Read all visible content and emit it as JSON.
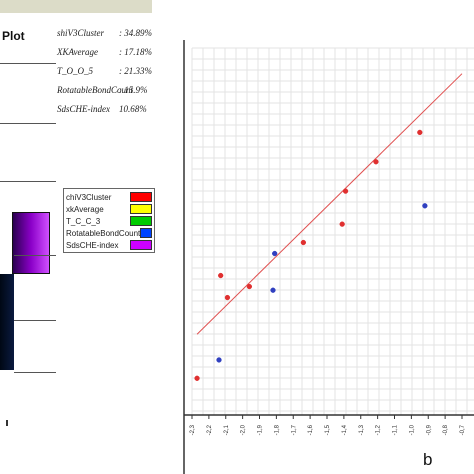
{
  "left_panel": {
    "title": "Plot",
    "stats": [
      {
        "label": "shiV3Cluster",
        "value": ": 34.89%"
      },
      {
        "label": "XKAverage",
        "value": ": 17.18%"
      },
      {
        "label": "T_O_O_5",
        "value": ": 21.33%"
      },
      {
        "label": "RotatableBondCount",
        "value": ": 15.9%"
      },
      {
        "label": "SdsCHE-index",
        "value": "10.68%"
      }
    ],
    "legend": [
      {
        "label": "chiV3Cluster",
        "color": "#ff0000"
      },
      {
        "label": "xkAverage",
        "color": "#ffff00"
      },
      {
        "label": "T_C_C_3",
        "color": "#00cc00"
      },
      {
        "label": "RotatableBondCount",
        "color": "#0044ff"
      },
      {
        "label": "SdsCHE-index",
        "color": "#cc00ff"
      }
    ]
  },
  "panel_label": "b",
  "chart_data": {
    "type": "scatter",
    "x_ticks": [
      "-2,3",
      "-2,2",
      "-2,1",
      "-2,0",
      "-1,9",
      "-1,8",
      "-1,7",
      "-1,6",
      "-1,5",
      "-1,4",
      "-1,3",
      "-1,2",
      "-1,1",
      "-1,0",
      "-0,9",
      "-0,8",
      "-0,7"
    ],
    "xlim": [
      -2.3,
      -0.7
    ],
    "ylim": [
      0,
      1
    ],
    "grid": true,
    "series": [
      {
        "color": "#e03030",
        "points": [
          {
            "x": -2.27,
            "y": 0.1
          },
          {
            "x": -2.13,
            "y": 0.38
          },
          {
            "x": -2.09,
            "y": 0.32
          },
          {
            "x": -1.96,
            "y": 0.35
          },
          {
            "x": -1.64,
            "y": 0.47
          },
          {
            "x": -1.41,
            "y": 0.52
          },
          {
            "x": -1.39,
            "y": 0.61
          },
          {
            "x": -1.21,
            "y": 0.69
          },
          {
            "x": -0.95,
            "y": 0.77
          }
        ]
      },
      {
        "color": "#3040c0",
        "points": [
          {
            "x": -2.14,
            "y": 0.15
          },
          {
            "x": -1.82,
            "y": 0.34
          },
          {
            "x": -1.81,
            "y": 0.44
          },
          {
            "x": -0.92,
            "y": 0.57
          }
        ]
      }
    ],
    "trendline": {
      "color": "#e05050",
      "x1": -2.27,
      "y1": 0.22,
      "x2": -0.7,
      "y2": 0.93
    }
  }
}
